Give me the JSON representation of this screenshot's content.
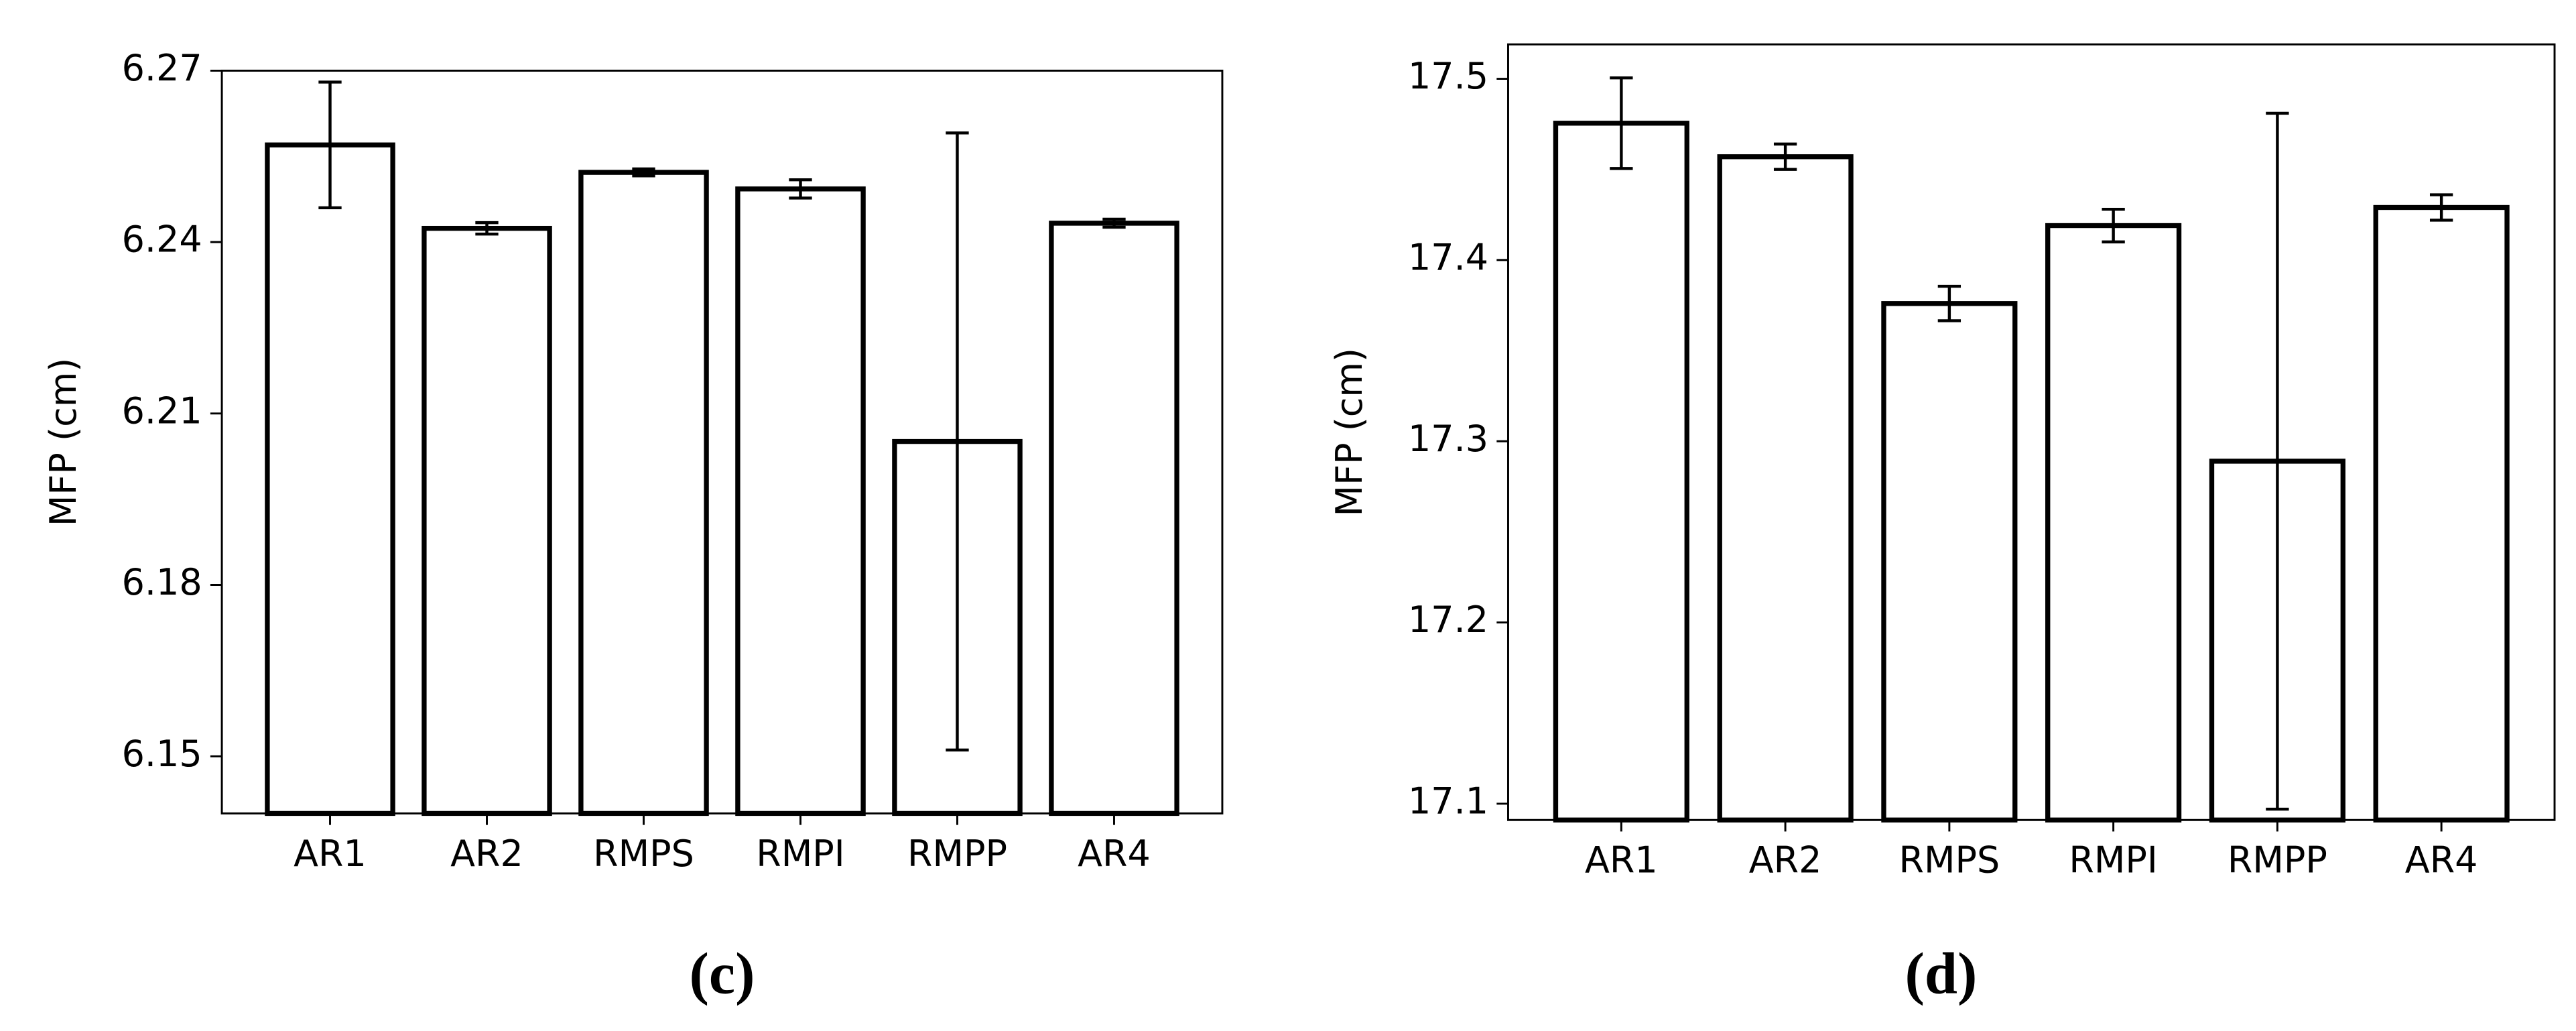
{
  "chart_data": [
    {
      "type": "bar",
      "panel_label": "(c)",
      "y_label": "MFP (cm)",
      "categories": [
        "AR1",
        "AR2",
        "RMPS",
        "RMPI",
        "RMPP",
        "AR4"
      ],
      "values": [
        6.257,
        6.2424,
        6.2522,
        6.2493,
        6.2051,
        6.2433
      ],
      "errors": [
        0.011,
        0.001,
        0.0006,
        0.0016,
        0.054,
        0.0007
      ],
      "color": "#ffffff",
      "edgecolor": "#000000",
      "ylim": [
        6.14,
        6.27
      ],
      "yticks": [
        6.15,
        6.18,
        6.21,
        6.24,
        6.27
      ],
      "grid": false
    },
    {
      "type": "bar",
      "panel_label": "(d)",
      "y_label": "MFP (cm)",
      "categories": [
        "AR1",
        "AR2",
        "RMPS",
        "RMPI",
        "RMPP",
        "AR4"
      ],
      "values": [
        17.4755,
        17.457,
        17.376,
        17.419,
        17.289,
        17.429
      ],
      "errors": [
        0.025,
        0.007,
        0.0095,
        0.009,
        0.192,
        0.007
      ],
      "color": "#ffffff",
      "edgecolor": "#000000",
      "ylim": [
        17.091,
        17.519
      ],
      "yticks": [
        17.1,
        17.2,
        17.3,
        17.4,
        17.5
      ],
      "grid": false
    }
  ]
}
